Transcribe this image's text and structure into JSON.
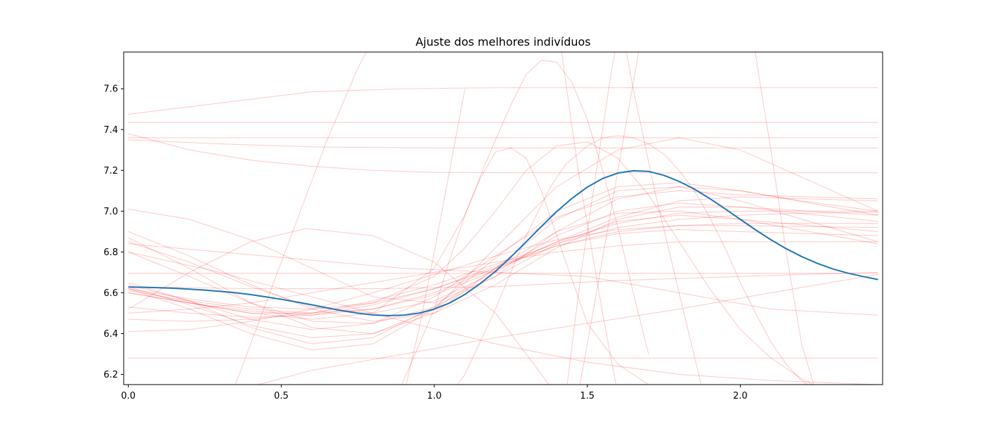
{
  "chart_data": {
    "type": "line",
    "title": "Ajuste dos melhores indivíduos",
    "xlabel": "",
    "ylabel": "",
    "xlim": [
      -0.015,
      2.465
    ],
    "ylim": [
      6.15,
      7.78
    ],
    "x_ticks": [
      0.0,
      0.5,
      1.0,
      1.5,
      2.0
    ],
    "x_tick_labels": [
      "0.0",
      "0.5",
      "1.0",
      "1.5",
      "2.0"
    ],
    "y_ticks": [
      6.2,
      6.4,
      6.6,
      6.8,
      7.0,
      7.2,
      7.4,
      7.6
    ],
    "y_tick_labels": [
      "6.2",
      "6.4",
      "6.6",
      "6.8",
      "7.0",
      "7.2",
      "7.4",
      "7.6"
    ],
    "grid": false,
    "legend": "none",
    "colors": {
      "best": "#1f77b4",
      "candidates": "#ff0000"
    },
    "best_series": {
      "x": [
        0.0,
        0.05,
        0.1,
        0.15,
        0.2,
        0.25,
        0.3,
        0.35,
        0.4,
        0.45,
        0.5,
        0.55,
        0.6,
        0.65,
        0.7,
        0.75,
        0.8,
        0.85,
        0.9,
        0.95,
        1.0,
        1.05,
        1.1,
        1.15,
        1.2,
        1.25,
        1.3,
        1.35,
        1.4,
        1.45,
        1.5,
        1.55,
        1.6,
        1.65,
        1.7,
        1.75,
        1.8,
        1.85,
        1.9,
        1.95,
        2.0,
        2.05,
        2.1,
        2.15,
        2.2,
        2.25,
        2.3,
        2.35,
        2.4,
        2.45
      ],
      "y": [
        6.628,
        6.627,
        6.625,
        6.622,
        6.618,
        6.613,
        6.607,
        6.6,
        6.591,
        6.58,
        6.568,
        6.555,
        6.541,
        6.526,
        6.512,
        6.5,
        6.491,
        6.488,
        6.49,
        6.5,
        6.52,
        6.55,
        6.592,
        6.645,
        6.705,
        6.775,
        6.85,
        6.925,
        6.998,
        7.063,
        7.118,
        7.16,
        7.187,
        7.198,
        7.195,
        7.176,
        7.146,
        7.108,
        7.062,
        7.012,
        6.96,
        6.908,
        6.86,
        6.816,
        6.778,
        6.745,
        6.718,
        6.697,
        6.68,
        6.665
      ]
    },
    "candidate_series": [
      {
        "x": [
          0.0,
          0.3,
          0.6,
          0.9,
          1.2,
          1.5,
          1.8,
          2.1,
          2.45
        ],
        "y": [
          7.475,
          7.53,
          7.585,
          7.6,
          7.605,
          7.605,
          7.605,
          7.605,
          7.605
        ]
      },
      {
        "x": [
          0.0,
          2.45
        ],
        "y": [
          7.435,
          7.435
        ]
      },
      {
        "x": [
          0.0,
          2.45
        ],
        "y": [
          7.36,
          7.36
        ]
      },
      {
        "x": [
          0.0,
          0.3,
          0.6,
          1.0,
          1.5,
          2.0,
          2.45
        ],
        "y": [
          7.35,
          7.33,
          7.315,
          7.31,
          7.31,
          7.31,
          7.31
        ]
      },
      {
        "x": [
          0.0,
          0.2,
          0.4,
          0.6,
          0.8,
          1.0,
          1.3,
          1.7,
          2.1,
          2.45
        ],
        "y": [
          7.38,
          7.3,
          7.25,
          7.22,
          7.2,
          7.19,
          7.188,
          7.188,
          7.188,
          7.188
        ]
      },
      {
        "x": [
          0.0,
          2.45
        ],
        "y": [
          6.28,
          6.28
        ]
      },
      {
        "x": [
          0.0,
          2.45
        ],
        "y": [
          6.695,
          6.695
        ]
      },
      {
        "x": [
          0.0,
          0.2,
          0.4,
          0.58,
          0.8,
          1.0,
          1.2,
          1.4
        ],
        "y": [
          6.52,
          6.7,
          6.85,
          6.915,
          6.88,
          6.75,
          6.5,
          6.1
        ]
      },
      {
        "x": [
          0.0,
          0.2,
          0.4,
          0.6,
          0.8,
          1.0,
          1.2,
          1.4,
          1.6,
          1.8,
          2.0,
          2.2,
          2.45
        ],
        "y": [
          6.47,
          6.46,
          6.47,
          6.5,
          6.56,
          6.64,
          6.74,
          6.84,
          6.92,
          6.96,
          6.98,
          6.99,
          6.995
        ]
      },
      {
        "x": [
          0.0,
          0.2,
          0.4,
          0.6,
          0.8,
          1.0,
          1.2,
          1.4,
          1.6,
          1.8,
          2.0,
          2.45
        ],
        "y": [
          6.6,
          6.55,
          6.51,
          6.49,
          6.52,
          6.6,
          6.72,
          6.85,
          6.94,
          6.99,
          7.0,
          7.0
        ]
      },
      {
        "x": [
          0.0,
          0.2,
          0.4,
          0.6,
          0.8,
          1.0,
          1.2,
          1.4,
          1.6,
          1.8,
          2.0,
          2.45
        ],
        "y": [
          6.85,
          6.75,
          6.63,
          6.53,
          6.5,
          6.56,
          6.7,
          6.88,
          7.0,
          7.04,
          7.02,
          6.98
        ]
      },
      {
        "x": [
          0.0,
          0.2,
          0.4,
          0.6,
          0.8,
          1.0,
          1.2,
          1.4,
          1.6,
          1.8,
          2.0,
          2.45
        ],
        "y": [
          6.9,
          6.78,
          6.64,
          6.52,
          6.46,
          6.5,
          6.64,
          6.82,
          6.96,
          7.02,
          7.02,
          6.95
        ]
      },
      {
        "x": [
          0.0,
          0.2,
          0.4,
          0.6,
          0.8,
          1.0,
          1.2,
          1.4,
          1.6,
          1.8,
          2.0,
          2.45
        ],
        "y": [
          6.62,
          6.57,
          6.53,
          6.52,
          6.55,
          6.62,
          6.72,
          6.83,
          6.9,
          6.93,
          6.94,
          6.94
        ]
      },
      {
        "x": [
          0.0,
          0.2,
          0.4,
          0.6,
          0.8,
          1.0,
          1.2,
          1.4,
          1.6,
          1.8,
          2.0,
          2.45
        ],
        "y": [
          6.41,
          6.42,
          6.46,
          6.52,
          6.6,
          6.69,
          6.78,
          6.86,
          6.91,
          6.93,
          6.93,
          6.92
        ]
      },
      {
        "x": [
          0.0,
          0.2,
          0.4,
          0.6,
          0.8,
          1.0,
          1.2,
          1.4,
          1.6,
          1.8,
          2.0,
          2.45
        ],
        "y": [
          6.53,
          6.5,
          6.48,
          6.49,
          6.54,
          6.62,
          6.73,
          6.83,
          6.89,
          6.91,
          6.9,
          6.88
        ]
      },
      {
        "x": [
          0.0,
          0.2,
          0.4,
          0.6,
          0.8,
          1.0,
          1.2,
          1.4,
          1.6,
          1.8,
          2.0,
          2.45
        ],
        "y": [
          6.61,
          6.56,
          6.52,
          6.5,
          6.52,
          6.59,
          6.71,
          6.85,
          6.97,
          7.05,
          7.07,
          7.05
        ]
      },
      {
        "x": [
          0.0,
          0.2,
          0.4,
          0.6,
          0.8,
          1.0,
          1.2,
          1.4,
          1.6,
          1.8,
          2.0,
          2.45
        ],
        "y": [
          6.64,
          6.56,
          6.47,
          6.42,
          6.45,
          6.58,
          6.78,
          6.97,
          7.07,
          7.1,
          7.08,
          7.06
        ]
      },
      {
        "x": [
          0.0,
          0.2,
          0.4,
          0.6,
          0.8,
          1.0,
          1.2,
          1.4,
          1.6,
          1.8,
          2.0,
          2.45
        ],
        "y": [
          6.8,
          6.68,
          6.55,
          6.46,
          6.45,
          6.53,
          6.68,
          6.84,
          6.95,
          6.98,
          6.96,
          6.9
        ]
      },
      {
        "x": [
          0.0,
          0.2,
          0.4,
          0.6,
          0.8,
          1.0,
          1.2,
          1.4,
          1.6,
          1.8,
          2.0,
          2.45
        ],
        "y": [
          6.63,
          6.54,
          6.44,
          6.38,
          6.4,
          6.52,
          6.72,
          6.9,
          6.99,
          7.0,
          6.96,
          6.84
        ]
      },
      {
        "x": [
          0.0,
          0.2,
          0.4,
          0.6,
          0.8,
          1.0,
          1.2,
          1.4,
          1.6,
          1.8,
          2.0,
          2.45
        ],
        "y": [
          6.65,
          6.56,
          6.43,
          6.35,
          6.38,
          6.53,
          6.77,
          7.0,
          7.12,
          7.14,
          7.1,
          6.98
        ]
      },
      {
        "x": [
          0.0,
          0.2,
          0.4,
          0.6,
          0.8,
          1.0,
          1.2,
          1.4,
          1.6,
          1.8,
          2.0,
          2.45
        ],
        "y": [
          6.87,
          6.72,
          6.55,
          6.43,
          6.4,
          6.5,
          6.72,
          6.96,
          7.1,
          7.12,
          7.05,
          6.85
        ]
      },
      {
        "x": [
          0.0,
          0.2,
          0.4,
          0.6,
          0.8,
          1.0,
          1.2,
          1.4,
          1.6,
          1.8,
          2.0,
          2.45
        ],
        "y": [
          6.62,
          6.52,
          6.4,
          6.32,
          6.35,
          6.52,
          6.82,
          7.12,
          7.3,
          7.36,
          7.3,
          7.0
        ]
      },
      {
        "x": [
          0.0,
          0.2,
          0.4,
          0.6,
          0.8,
          1.0,
          1.2,
          1.4,
          1.6,
          1.8,
          2.0,
          2.2,
          2.45
        ],
        "y": [
          6.5,
          6.52,
          6.55,
          6.6,
          6.65,
          6.7,
          6.75,
          6.8,
          6.83,
          6.85,
          6.85,
          6.85,
          6.85
        ]
      },
      {
        "x": [
          0.0,
          0.2,
          0.4,
          0.6,
          0.8,
          1.0,
          1.2,
          1.4,
          1.6,
          1.8,
          2.0,
          2.2,
          2.45
        ],
        "y": [
          7.01,
          6.96,
          6.86,
          6.72,
          6.58,
          6.55,
          6.68,
          6.9,
          7.06,
          7.12,
          7.1,
          7.05,
          7.0
        ]
      },
      {
        "x": [
          0.0,
          0.2,
          0.4,
          0.6,
          0.8,
          1.0,
          1.1,
          1.2,
          1.3,
          1.4,
          1.5,
          1.6,
          1.7,
          1.8,
          1.9,
          2.0,
          2.1,
          2.2,
          2.3
        ],
        "y": [
          6.62,
          6.55,
          6.5,
          6.5,
          6.55,
          6.68,
          6.82,
          7.0,
          7.2,
          7.32,
          7.34,
          7.26,
          7.08,
          6.85,
          6.62,
          6.42,
          6.28,
          6.18,
          6.1
        ]
      },
      {
        "x": [
          0.0,
          0.2,
          0.4,
          0.6,
          0.8,
          1.0,
          1.1,
          1.15,
          1.2,
          1.25,
          1.3,
          1.35,
          1.4,
          1.5,
          1.6,
          1.7,
          1.8
        ],
        "y": [
          6.6,
          6.55,
          6.5,
          6.47,
          6.5,
          6.72,
          6.98,
          7.16,
          7.29,
          7.31,
          7.26,
          7.1,
          6.88,
          6.45,
          6.25,
          6.15,
          6.1
        ]
      },
      {
        "x": [
          0.88,
          1.0,
          1.05,
          1.1,
          1.15,
          1.2,
          1.25,
          1.3,
          1.35,
          1.4,
          1.45,
          1.5,
          1.55,
          1.6,
          1.65,
          1.7
        ],
        "y": [
          6.1,
          6.52,
          6.76,
          6.98,
          7.17,
          7.35,
          7.52,
          7.67,
          7.74,
          7.73,
          7.63,
          7.45,
          7.2,
          6.92,
          6.6,
          6.3
        ]
      },
      {
        "x": [
          1.05,
          1.1,
          1.2,
          1.3,
          1.38,
          1.43,
          1.5,
          1.55,
          1.6,
          1.65,
          1.7,
          1.75,
          1.8,
          1.85,
          1.9,
          1.95,
          2.0,
          2.05,
          2.1,
          2.15,
          2.2,
          2.25
        ],
        "y": [
          6.1,
          6.2,
          6.52,
          6.88,
          7.12,
          7.23,
          7.32,
          7.36,
          7.37,
          7.36,
          7.33,
          7.28,
          7.2,
          7.1,
          6.97,
          6.82,
          6.65,
          6.5,
          6.36,
          6.25,
          6.17,
          6.12
        ]
      },
      {
        "x": [
          0.35,
          0.45,
          0.55,
          0.65,
          0.75,
          0.82
        ],
        "y": [
          6.15,
          6.55,
          6.95,
          7.35,
          7.7,
          7.9
        ]
      },
      {
        "x": [
          0.9,
          0.95,
          1.0,
          1.05,
          1.1
        ],
        "y": [
          6.1,
          6.42,
          6.8,
          7.2,
          7.6
        ]
      },
      {
        "x": [
          1.43,
          1.48,
          1.53,
          1.58,
          1.62
        ],
        "y": [
          6.1,
          6.7,
          7.2,
          7.7,
          8.0
        ]
      },
      {
        "x": [
          1.47,
          1.53,
          1.6,
          1.67,
          1.72
        ],
        "y": [
          6.1,
          6.6,
          7.2,
          7.8,
          8.1
        ]
      },
      {
        "x": [
          1.6,
          1.65,
          1.72,
          1.8,
          1.88
        ],
        "y": [
          8.0,
          7.6,
          7.1,
          6.6,
          6.1
        ]
      },
      {
        "x": [
          1.4,
          1.47,
          1.55,
          1.6
        ],
        "y": [
          7.95,
          7.2,
          6.5,
          6.1
        ]
      },
      {
        "x": [
          2.03,
          2.1,
          2.15,
          2.2,
          2.25
        ],
        "y": [
          7.95,
          7.3,
          6.8,
          6.35,
          6.1
        ]
      },
      {
        "x": [
          0.1,
          0.3,
          0.6,
          0.9,
          1.2,
          1.5,
          1.8,
          2.1,
          2.45
        ],
        "y": [
          6.0,
          6.1,
          6.22,
          6.3,
          6.38,
          6.45,
          6.52,
          6.6,
          6.69
        ]
      },
      {
        "x": [
          0.0,
          0.3,
          0.6,
          0.9,
          1.2,
          1.5,
          1.8,
          2.1,
          2.45
        ],
        "y": [
          6.8,
          6.7,
          6.58,
          6.46,
          6.35,
          6.26,
          6.2,
          6.17,
          6.15
        ]
      },
      {
        "x": [
          0.0,
          0.4,
          0.8,
          1.2,
          1.6,
          2.0,
          2.2,
          2.45
        ],
        "y": [
          6.63,
          6.62,
          6.62,
          6.63,
          6.66,
          6.68,
          6.69,
          6.7
        ]
      },
      {
        "x": [
          0.0,
          0.3,
          0.6,
          0.9,
          1.2,
          1.5,
          1.8,
          2.1,
          2.45
        ],
        "y": [
          6.84,
          6.8,
          6.76,
          6.72,
          6.7,
          6.68,
          6.6,
          6.52,
          6.49
        ]
      }
    ]
  }
}
